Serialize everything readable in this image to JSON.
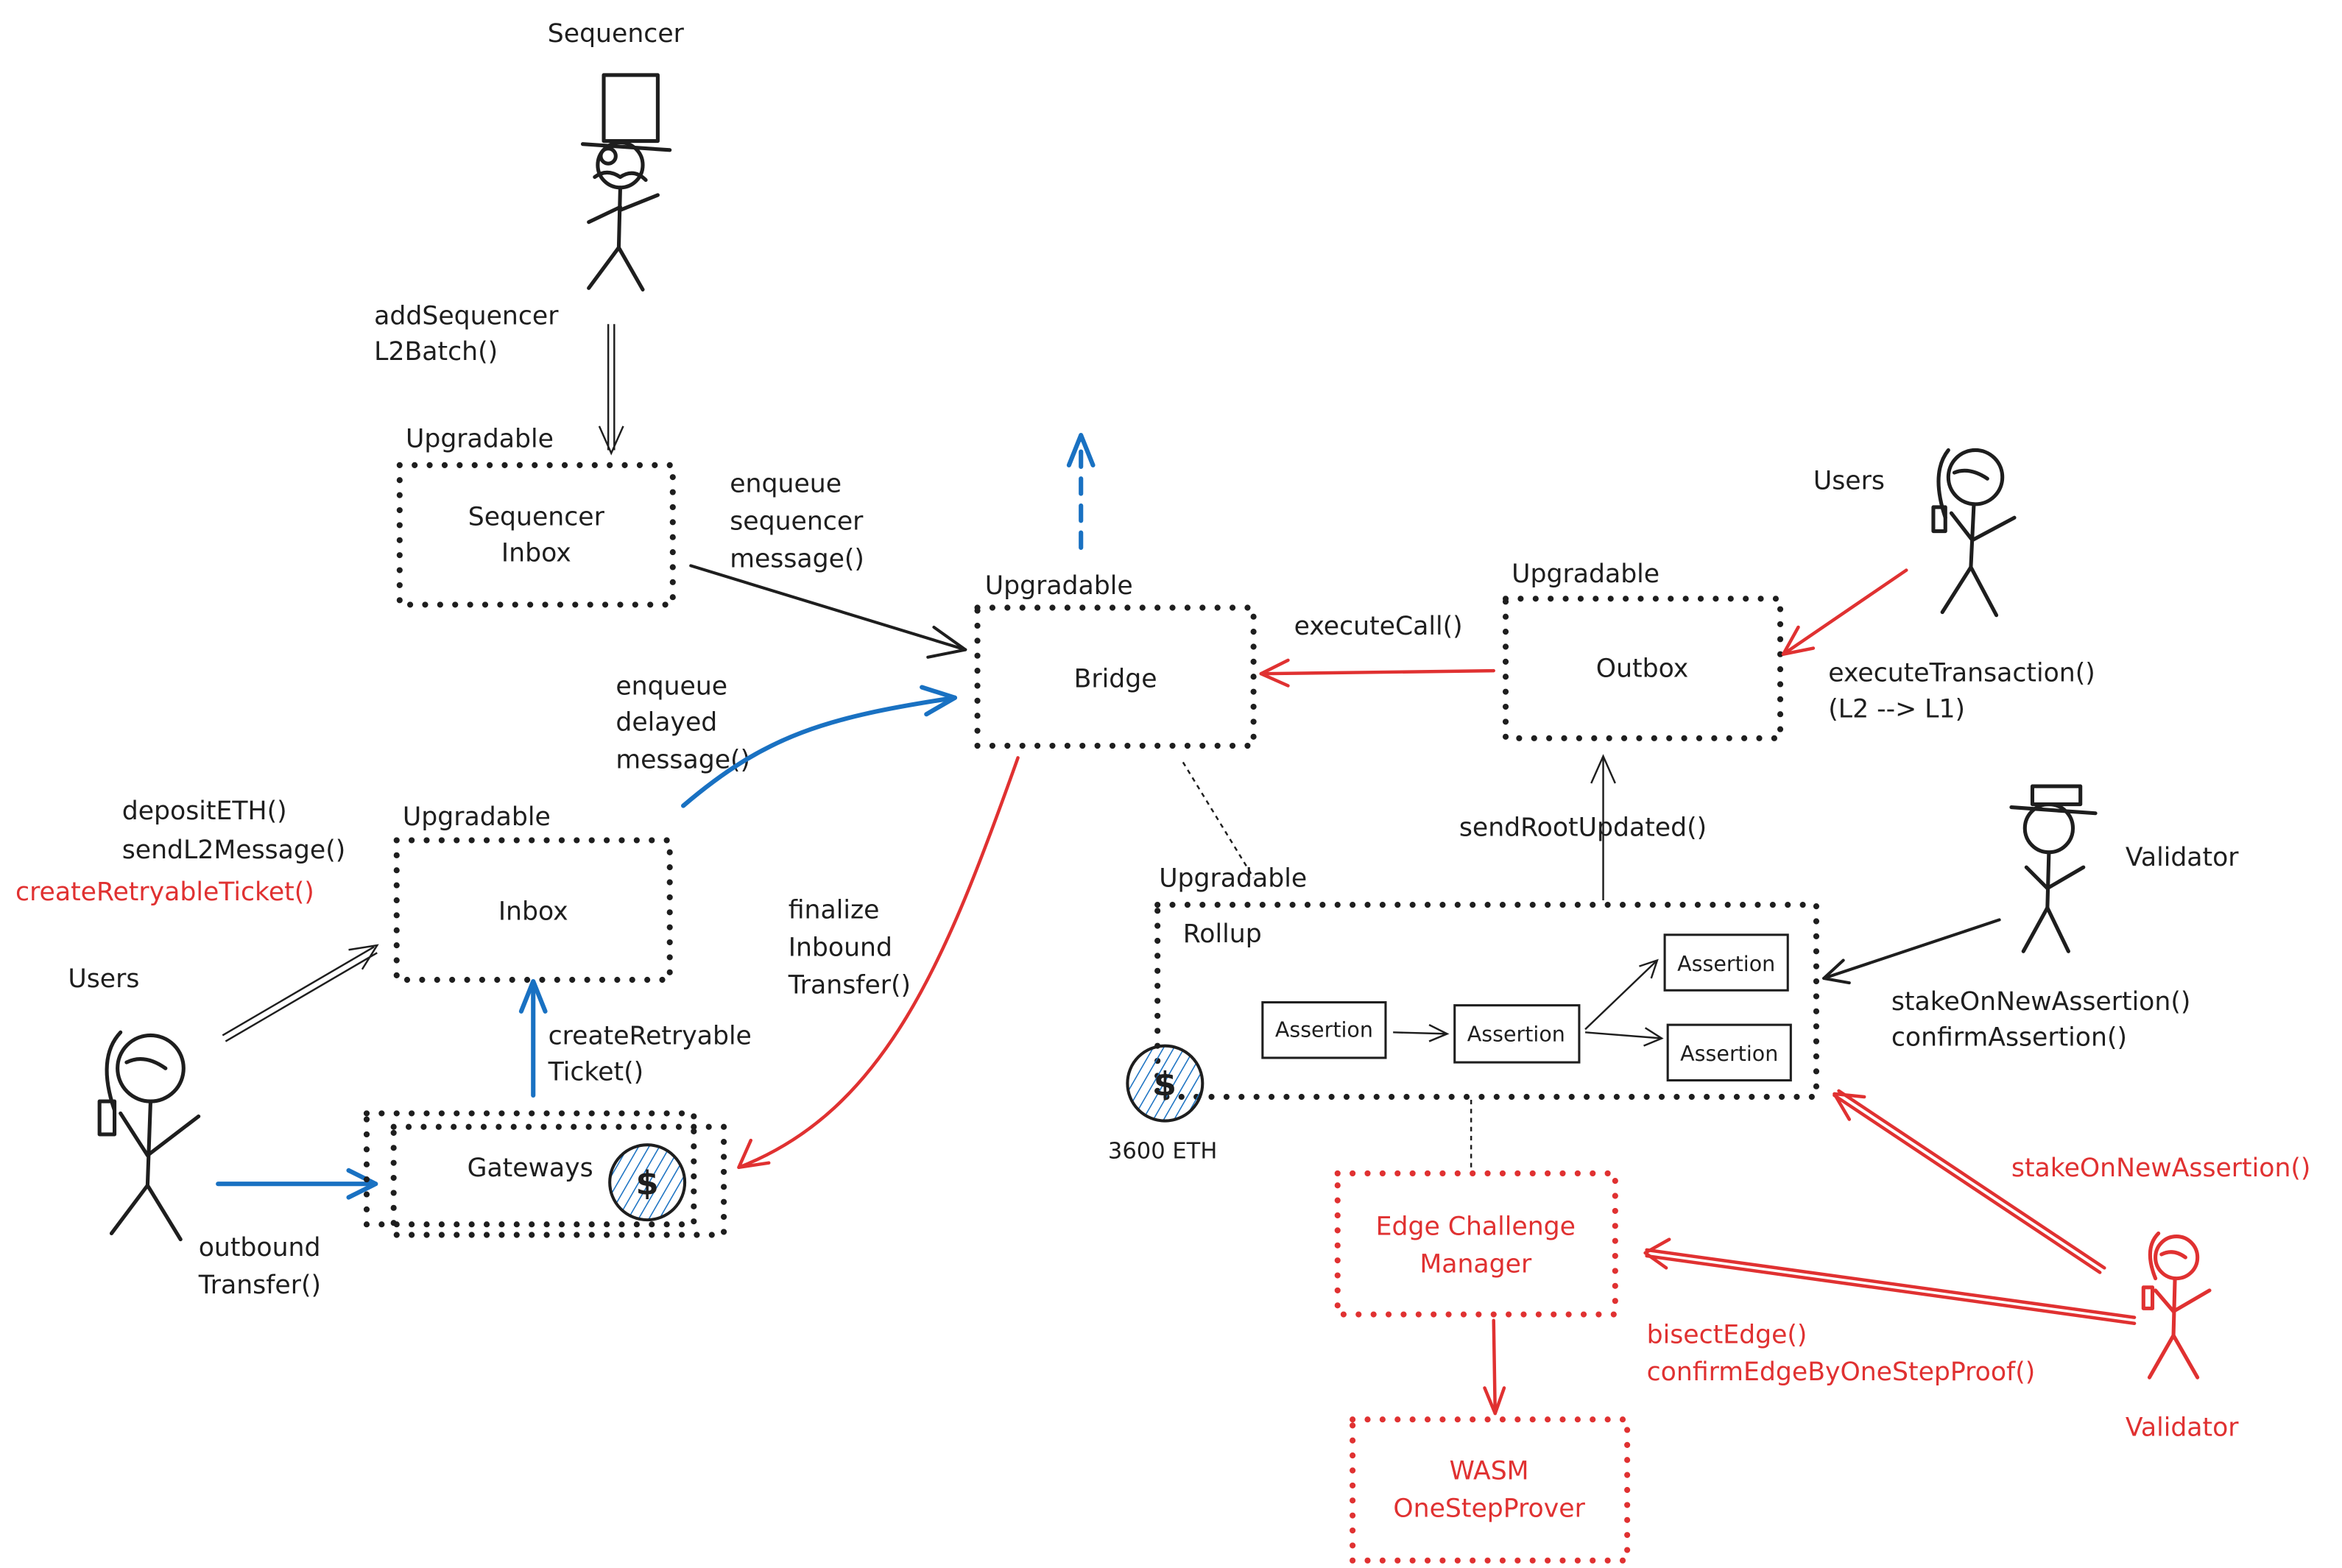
{
  "colors": {
    "ink": "#1e1e1e",
    "blue": "#1971c2",
    "red": "#e03131"
  },
  "sequencer": {
    "label": "Sequencer",
    "call_line1": "addSequencer",
    "call_line2": "L2Batch()"
  },
  "sequencer_inbox": {
    "tag": "Upgradable",
    "line1": "Sequencer",
    "line2": "Inbox",
    "msg1": "enqueue",
    "msg2": "sequencer",
    "msg3": "message()"
  },
  "bridge": {
    "tag": "Upgradable",
    "label": "Bridge"
  },
  "outbox": {
    "tag": "Upgradable",
    "label": "Outbox",
    "execute_call": "executeCall()"
  },
  "users_right": {
    "label": "Users",
    "call1": "executeTransaction()",
    "call2": "(L2 --> L1)"
  },
  "inbox": {
    "tag": "Upgradable",
    "label": "Inbox",
    "msg1": "enqueue",
    "msg2": "delayed",
    "msg3": "message()"
  },
  "users_left": {
    "label": "Users",
    "call1": "depositETH()",
    "call2": "sendL2Message()",
    "call3": "createRetryableTicket()",
    "outbound1": "outbound",
    "outbound2": "Transfer()"
  },
  "gateways": {
    "label": "Gateways",
    "coin": "$",
    "retry1": "createRetryable",
    "retry2": "Ticket()",
    "finalize1": "finalize",
    "finalize2": "Inbound",
    "finalize3": "Transfer()"
  },
  "rollup": {
    "tag": "Upgradable",
    "label": "Rollup",
    "send_root": "sendRootUpdated()",
    "assertions": [
      "Assertion",
      "Assertion",
      "Assertion",
      "Assertion"
    ],
    "coin": "$",
    "balance": "3600 ETH"
  },
  "validator_top": {
    "label": "Validator",
    "call1": "stakeOnNewAssertion()",
    "call2": "confirmAssertion()"
  },
  "edge_challenge": {
    "line1": "Edge Challenge",
    "line2": "Manager"
  },
  "wasm": {
    "line1": "WASM",
    "line2": "OneStepProver"
  },
  "validator_red": {
    "label": "Validator",
    "stake": "stakeOnNewAssertion()",
    "call1": "bisectEdge()",
    "call2": "confirmEdgeByOneStepProof()"
  }
}
